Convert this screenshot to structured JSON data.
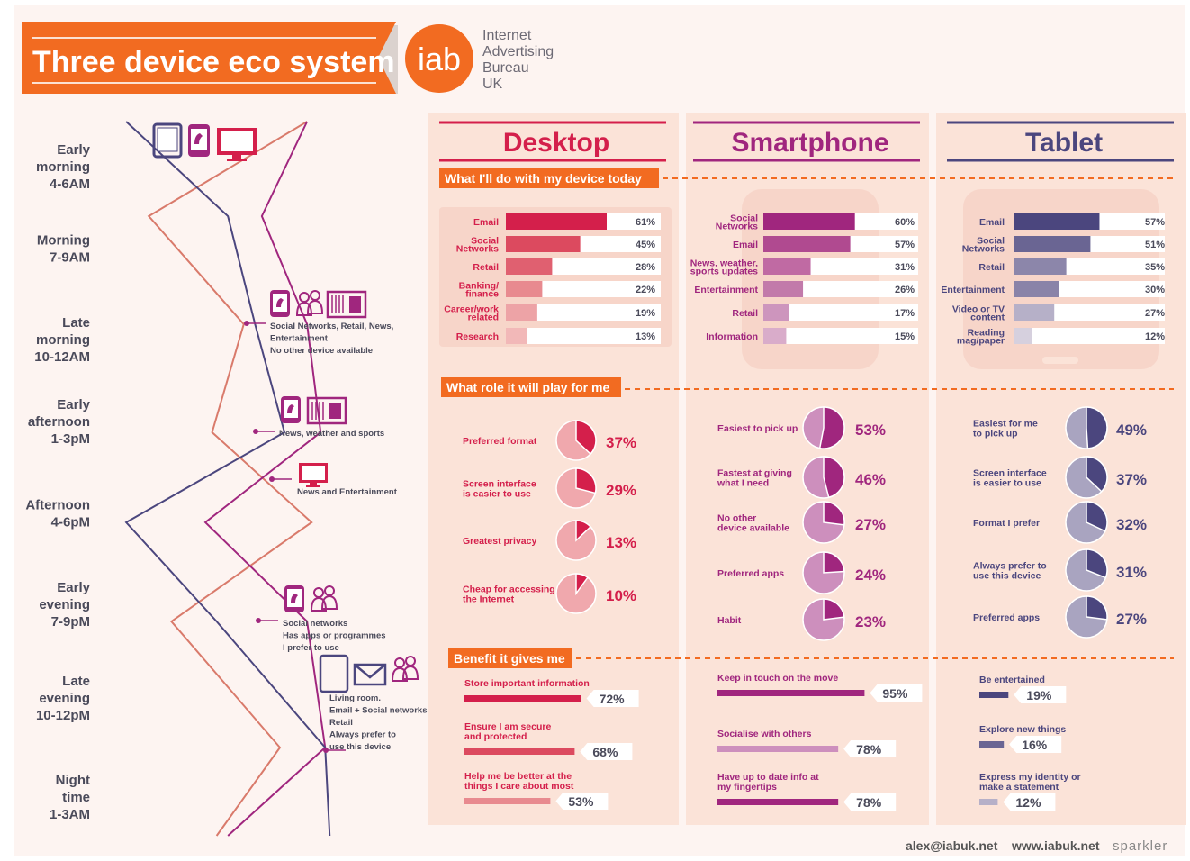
{
  "header": {
    "title": "Three device eco system",
    "logo_text": "iab",
    "org_lines": [
      "Internet",
      "Advertising",
      "Bureau",
      "UK"
    ]
  },
  "colors": {
    "orange": "#f26b21",
    "desktop": "#d41f4b",
    "smartphone": "#a0267e",
    "tablet": "#4b467e",
    "desktop_line": "#d97a6b",
    "panel_bg": "#fcece5",
    "page_bg": "#fdf4f1"
  },
  "timeline": {
    "times": [
      [
        "Early",
        "morning",
        "4-6AM"
      ],
      [
        "Morning",
        "7-9AM"
      ],
      [
        "Late",
        "morning",
        "10-12AM"
      ],
      [
        "Early",
        "afternoon",
        "1-3pM"
      ],
      [
        "Afternoon",
        "4-6pM"
      ],
      [
        "Early",
        "evening",
        "7-9pM"
      ],
      [
        "Late",
        "evening",
        "10-12pM"
      ],
      [
        "Night",
        "time",
        "1-3AM"
      ]
    ],
    "annotations": [
      {
        "icons": [
          "smartphone-icon",
          "people-icon",
          "newspaper-icon"
        ],
        "lines": [
          "Social Networks, Retail, News,",
          "Entertainment",
          "No other device available"
        ]
      },
      {
        "icons": [
          "smartphone-icon",
          "newspaper-icon"
        ],
        "lines": [
          "News, weather and sports"
        ]
      },
      {
        "icons": [
          "desktop-icon"
        ],
        "lines": [
          "News and Entertainment"
        ]
      },
      {
        "icons": [
          "smartphone-icon",
          "people-icon"
        ],
        "lines": [
          "Social networks",
          "Has apps or programmes",
          "I prefer to use"
        ]
      },
      {
        "icons": [
          "tablet-icon",
          "email-icon",
          "people-icon"
        ],
        "lines": [
          "Living room.",
          "Email + Social networks,",
          "Retail",
          "Always prefer to",
          "use this device"
        ]
      }
    ]
  },
  "section_labels": {
    "today": "What I'll do with my device today",
    "role": "What role it will play for me",
    "benefit": "Benefit it gives me"
  },
  "footer": {
    "email": "alex@iabuk.net",
    "web": "www.iabuk.net",
    "brand": "sparkler"
  },
  "chart_data": [
    {
      "type": "line",
      "title": "",
      "categories": [
        "Early morning 4-6AM",
        "Morning 7-9AM",
        "Late morning 10-12AM",
        "Early afternoon 1-3pM",
        "Afternoon 4-6pM",
        "Early evening 7-9pM",
        "Late evening 10-12pM",
        "Night time 1-3AM"
      ],
      "series": [
        {
          "name": "",
          "device": "desktop",
          "values": [
            0.9,
            0.2,
            0.62,
            0.48,
            0.92,
            0.3,
            0.78,
            0.5
          ]
        },
        {
          "name": "",
          "device": "smartphone",
          "values": [
            0.9,
            0.7,
            0.9,
            0.96,
            0.45,
            0.9,
            0.98,
            0.55
          ]
        },
        {
          "name": "",
          "device": "tablet",
          "values": [
            0.1,
            0.55,
            0.67,
            0.8,
            0.1,
            0.5,
            0.98,
            1.0
          ]
        }
      ]
    },
    {
      "type": "bar",
      "panel": "Desktop",
      "section": "What I'll do with my device today",
      "categories": [
        "Email",
        "Social Networks",
        "Retail",
        "Banking/ finance",
        "Career/work related",
        "Research"
      ],
      "values": [
        61,
        45,
        28,
        22,
        19,
        13
      ],
      "unit": "%"
    },
    {
      "type": "bar",
      "panel": "Smartphone",
      "section": "What I'll do with my device today",
      "categories": [
        "Social Networks",
        "Email",
        "News, weather, sports updates",
        "Entertainment",
        "Retail",
        "Information"
      ],
      "values": [
        60,
        57,
        31,
        26,
        17,
        15
      ],
      "unit": "%"
    },
    {
      "type": "bar",
      "panel": "Tablet",
      "section": "What I'll do with my device today",
      "categories": [
        "Email",
        "Social Networks",
        "Retail",
        "Entertainment",
        "Video or TV content",
        "Reading mag/paper"
      ],
      "values": [
        57,
        51,
        35,
        30,
        27,
        12
      ],
      "unit": "%"
    },
    {
      "type": "pie",
      "panel": "Desktop",
      "section": "What role it will play for me",
      "categories": [
        "Preferred format",
        "Screen interface is easier to use",
        "Greatest privacy",
        "Cheap for accessing the Internet"
      ],
      "values": [
        37,
        29,
        13,
        10
      ],
      "unit": "%"
    },
    {
      "type": "pie",
      "panel": "Smartphone",
      "section": "What role it will play for me",
      "categories": [
        "Easiest to pick up",
        "Fastest at giving what I need",
        "No other device available",
        "Preferred apps",
        "Habit"
      ],
      "values": [
        53,
        46,
        27,
        24,
        23
      ],
      "unit": "%"
    },
    {
      "type": "pie",
      "panel": "Tablet",
      "section": "What role it will play for me",
      "categories": [
        "Easiest for me to pick up",
        "Screen interface is easier to use",
        "Format I prefer",
        "Always prefer to use this device",
        "Preferred apps"
      ],
      "values": [
        49,
        37,
        32,
        31,
        27
      ],
      "unit": "%"
    },
    {
      "type": "bar",
      "panel": "Desktop",
      "section": "Benefit it gives me",
      "categories": [
        "Store important information",
        "Ensure I am secure and protected",
        "Help me be better at the things I care about most"
      ],
      "values": [
        72,
        68,
        53
      ],
      "unit": "%"
    },
    {
      "type": "bar",
      "panel": "Smartphone",
      "section": "Benefit it gives me",
      "categories": [
        "Keep in touch on the move",
        "Socialise with others",
        "Have up to date info at my fingertips"
      ],
      "values": [
        95,
        78,
        78
      ],
      "unit": "%"
    },
    {
      "type": "bar",
      "panel": "Tablet",
      "section": "Benefit it gives me",
      "categories": [
        "Be entertained",
        "Explore new things",
        "Express my identity or make a statement"
      ],
      "values": [
        19,
        16,
        12
      ],
      "unit": "%"
    }
  ]
}
